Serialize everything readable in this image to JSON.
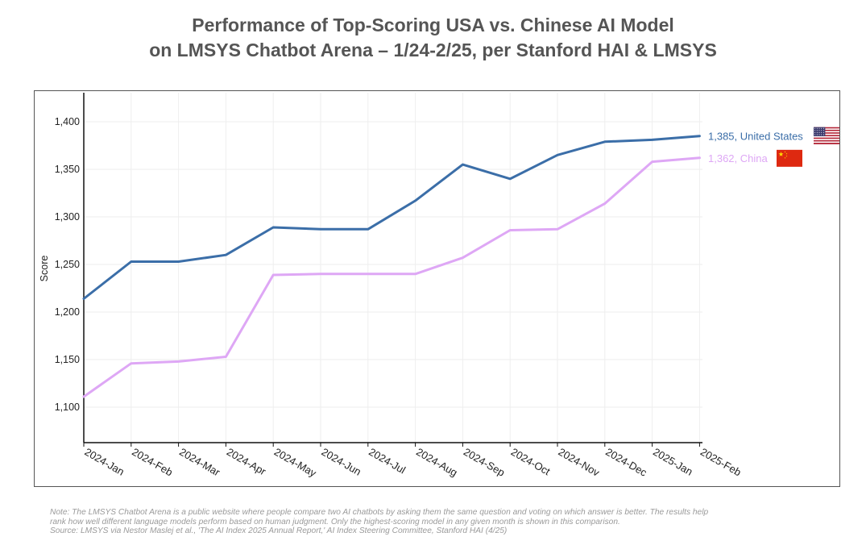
{
  "header": {
    "title_line1": "Performance of Top-Scoring USA vs. Chinese AI Model",
    "title_line2": "on LMSYS Chatbot Arena – 1/24-2/25, per Stanford HAI & LMSYS"
  },
  "footer": {
    "note_line1": "Note: The LMSYS Chatbot Arena is a public website where people compare two AI chatbots by asking them the same question and voting on which answer is better. The results help",
    "note_line2": "rank how well different language models perform based on human judgment. Only the highest-scoring model in any given month is shown in this comparison.",
    "source": "Source: LMSYS via Nestor Maslej et al., 'The AI Index 2025 Annual Report,' AI Index Steering Committee, Stanford HAI (4/25)"
  },
  "chart_data": {
    "type": "line",
    "title": "",
    "xlabel": "",
    "ylabel": "Score",
    "categories": [
      "2024-Jan",
      "2024-Feb",
      "2024-Mar",
      "2024-Apr",
      "2024-May",
      "2024-Jun",
      "2024-Jul",
      "2024-Aug",
      "2024-Sep",
      "2024-Oct",
      "2024-Nov",
      "2024-Dec",
      "2025-Jan",
      "2025-Feb"
    ],
    "ylim": [
      1050,
      1430
    ],
    "yticks": [
      1100,
      1150,
      1200,
      1250,
      1300,
      1350,
      1400
    ],
    "ytick_labels": [
      "1,100",
      "1,150",
      "1,200",
      "1,250",
      "1,300",
      "1,350",
      "1,400"
    ],
    "grid": true,
    "series": [
      {
        "name": "United States",
        "color": "#3b6ea8",
        "end_label": "1,385, United States",
        "flag": "us-flag-icon",
        "values": [
          1214,
          1253,
          1253,
          1260,
          1289,
          1287,
          1287,
          1317,
          1355,
          1340,
          1365,
          1379,
          1381,
          1385
        ]
      },
      {
        "name": "China",
        "color": "#dea7f5",
        "end_label": "1,362, China",
        "flag": "china-flag-icon",
        "values": [
          1111,
          1146,
          1148,
          1153,
          1239,
          1240,
          1240,
          1240,
          1257,
          1286,
          1287,
          1314,
          1358,
          1362
        ]
      }
    ]
  }
}
